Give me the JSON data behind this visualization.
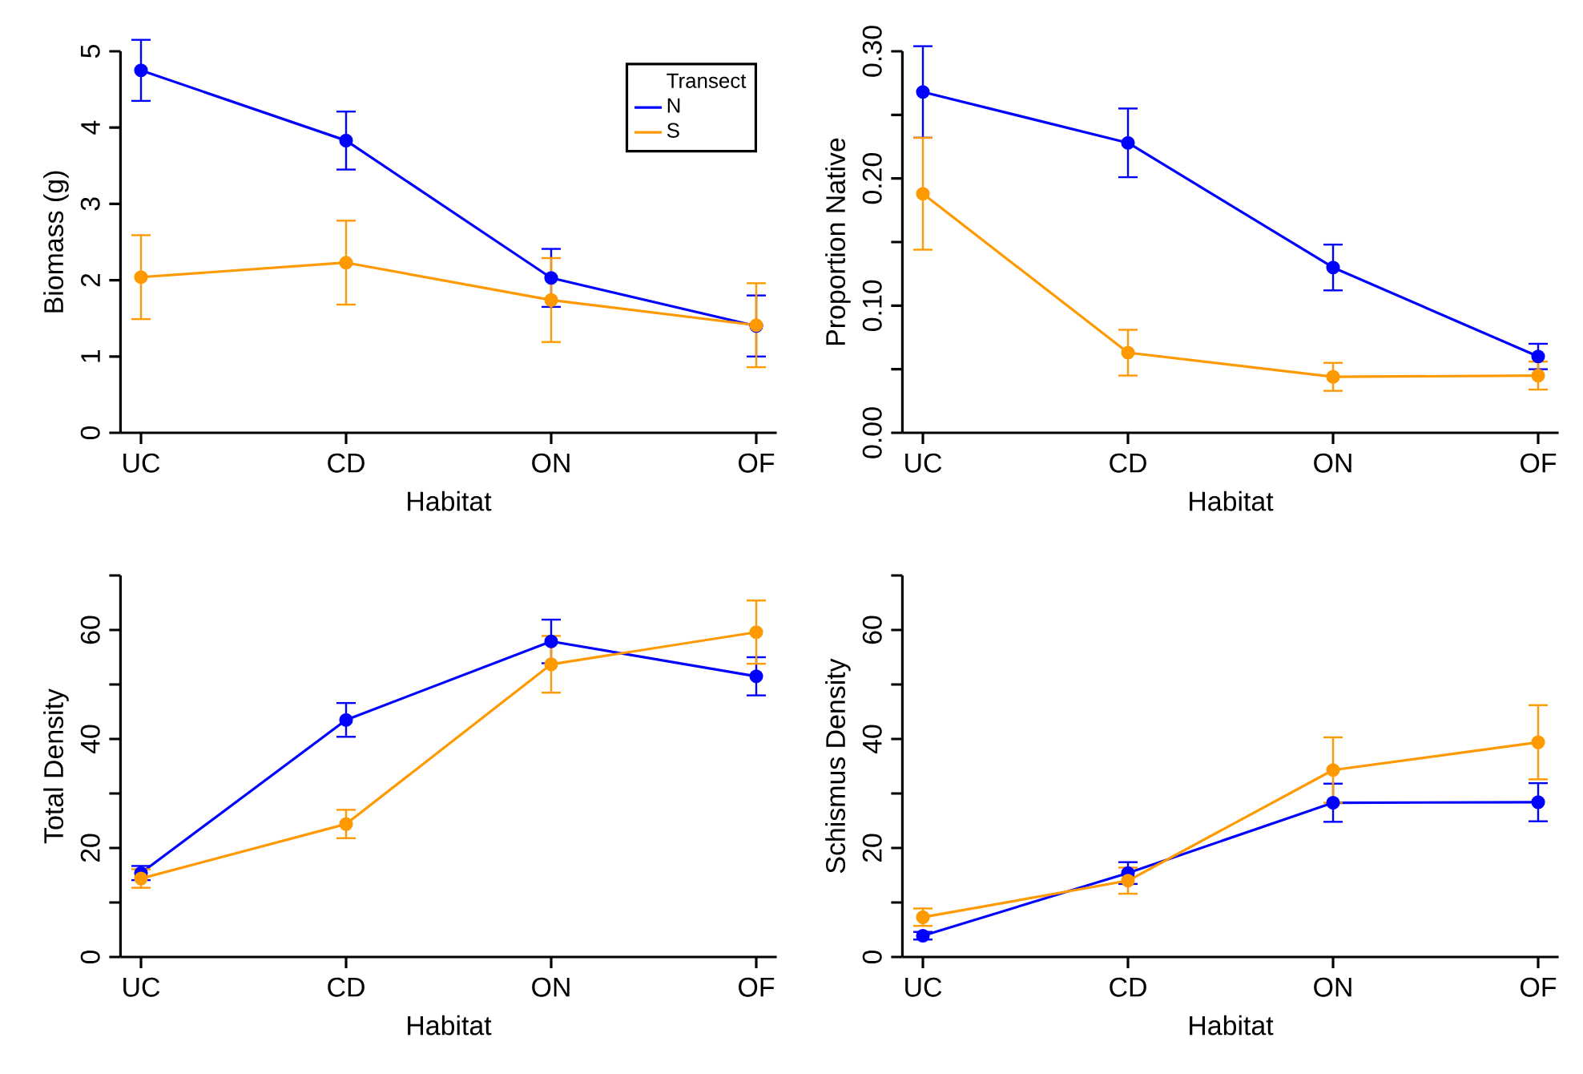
{
  "chart_data": [
    {
      "type": "line",
      "categories": [
        "UC",
        "CD",
        "ON",
        "OF"
      ],
      "xlabel": "Habitat",
      "ylabel": "Biomass (g)",
      "ylim": [
        0,
        5
      ],
      "yticks": [
        0,
        1,
        2,
        3,
        4,
        5
      ],
      "marker": "circle",
      "legend": "top right",
      "legend_title": "Transect",
      "series": [
        {
          "name": "N",
          "color": "#0000ff",
          "values": [
            4.75,
            3.83,
            2.03,
            1.4
          ],
          "errors": [
            0.4,
            0.38,
            0.38,
            0.4
          ]
        },
        {
          "name": "S",
          "color": "#ff9900",
          "values": [
            2.04,
            2.23,
            1.74,
            1.41
          ],
          "errors": [
            0.55,
            0.55,
            0.55,
            0.55
          ]
        }
      ]
    },
    {
      "type": "line",
      "categories": [
        "UC",
        "CD",
        "ON",
        "OF"
      ],
      "xlabel": "Habitat",
      "ylabel": "Proportion Native",
      "ylim": [
        0,
        0.3
      ],
      "yticks": [
        {
          "value": 0,
          "label": "0.00"
        },
        {
          "value": 0.05,
          "label": null
        },
        {
          "value": 0.1,
          "label": "0.10"
        },
        {
          "value": 0.15,
          "label": null
        },
        {
          "value": 0.2,
          "label": "0.20"
        },
        {
          "value": 0.25,
          "label": null
        },
        {
          "value": 0.3,
          "label": "0.30"
        }
      ],
      "marker": "circle",
      "series": [
        {
          "color": "#0000ff",
          "values": [
            0.268,
            0.228,
            0.13,
            0.06
          ],
          "errors": [
            0.036,
            0.027,
            0.018,
            0.01
          ]
        },
        {
          "color": "#ff9900",
          "values": [
            0.188,
            0.063,
            0.044,
            0.045
          ],
          "errors": [
            0.044,
            0.018,
            0.011,
            0.011
          ]
        }
      ]
    },
    {
      "type": "line",
      "categories": [
        "UC",
        "CD",
        "ON",
        "OF"
      ],
      "xlabel": "Habitat",
      "ylabel": "Total Density",
      "ylim": [
        0,
        70
      ],
      "yticks": [
        0,
        {
          "value": 10,
          "label": null
        },
        20,
        {
          "value": 30,
          "label": null
        },
        40,
        {
          "value": 50,
          "label": null
        },
        60,
        {
          "value": 70,
          "label": null
        }
      ],
      "marker": "circle",
      "series": [
        {
          "color": "#0000ff",
          "values": [
            15.4,
            43.5,
            57.9,
            51.5
          ],
          "errors": [
            1.3,
            3.1,
            4,
            3.5
          ]
        },
        {
          "color": "#ff9900",
          "values": [
            14.4,
            24.4,
            53.7,
            59.6
          ],
          "errors": [
            1.7,
            2.6,
            5.2,
            5.8
          ]
        }
      ]
    },
    {
      "type": "line",
      "categories": [
        "UC",
        "CD",
        "ON",
        "OF"
      ],
      "xlabel": "Habitat",
      "ylabel": "Schismus Density",
      "ylim": [
        0,
        70
      ],
      "yticks": [
        0,
        {
          "value": 10,
          "label": null
        },
        20,
        {
          "value": 30,
          "label": null
        },
        40,
        {
          "value": 50,
          "label": null
        },
        60,
        {
          "value": 70,
          "label": null
        }
      ],
      "marker": "circle",
      "series": [
        {
          "color": "#0000ff",
          "values": [
            3.9,
            15.4,
            28.3,
            28.4
          ],
          "errors": [
            0.7,
            2,
            3.5,
            3.5
          ]
        },
        {
          "color": "#ff9900",
          "values": [
            7.3,
            14.0,
            34.3,
            39.4
          ],
          "errors": [
            1.6,
            2.4,
            6,
            6.8
          ]
        }
      ]
    }
  ]
}
